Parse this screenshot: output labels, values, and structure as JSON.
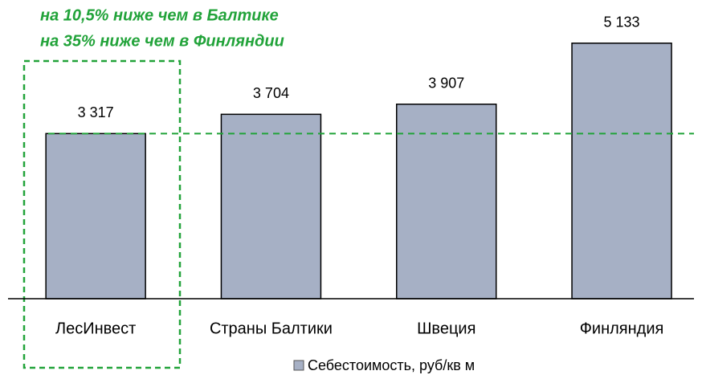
{
  "chart_data": {
    "type": "bar",
    "annotations": [
      "на 10,5% ниже чем в Балтике",
      "на 35% ниже чем в Финляндии"
    ],
    "categories": [
      "ЛесИнвест",
      "Страны Балтики",
      "Швеция",
      "Финляндия"
    ],
    "series": [
      {
        "name": "Себестоимость, руб/кв м",
        "color": "#a6b0c5",
        "values": [
          3317,
          3704,
          3907,
          5133
        ],
        "value_labels": [
          "3 317",
          "3 704",
          "3 907",
          "5 133"
        ]
      }
    ],
    "ylim": [
      0,
      5500
    ]
  }
}
